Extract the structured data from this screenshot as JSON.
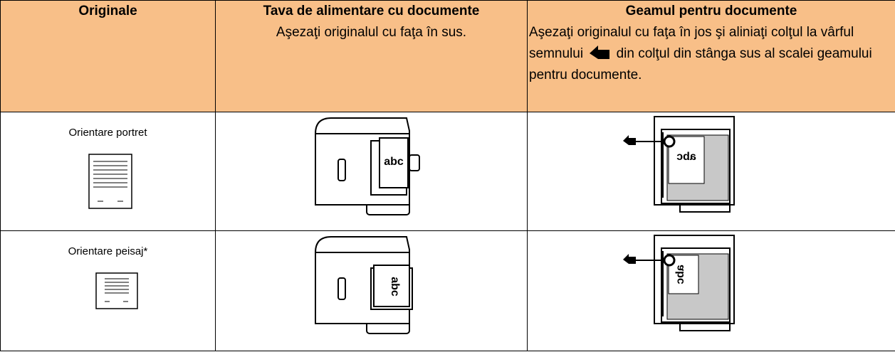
{
  "table": {
    "header": [
      {
        "title": "Originale"
      },
      {
        "title": "Tava de alimentare cu documente",
        "text": "Aşezaţi originalul cu faţa în sus."
      },
      {
        "title": "Geamul pentru documente",
        "text_before": "Aşezaţi originalul cu faţa în jos şi aliniaţi colţul la vârful semnului",
        "text_after": "din colţul din stânga sus al scalei geamului pentru documente."
      }
    ],
    "rows": [
      {
        "label": "Orientare portret",
        "feeder_text": "abc",
        "glass_text": "abc"
      },
      {
        "label": "Orientare peisaj*",
        "feeder_text": "abc",
        "glass_text": "abc"
      }
    ]
  }
}
